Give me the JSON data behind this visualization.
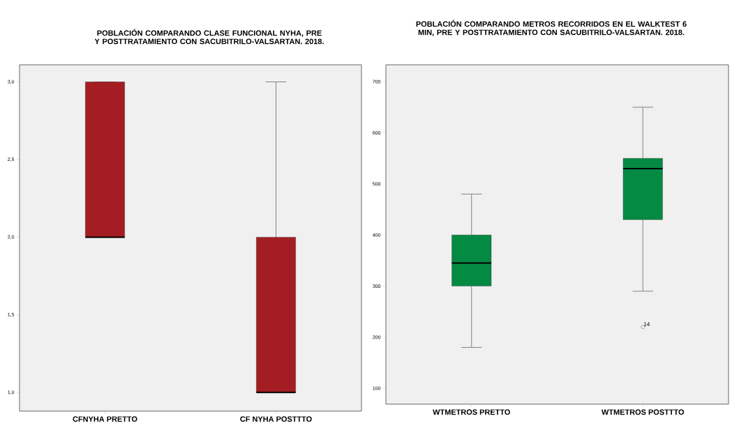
{
  "chart_data": [
    {
      "type": "box",
      "title": "POBLACIÓN COMPARANDO CLASE FUNCIONAL NYHA, PRE Y POSTTRATAMIENTO CON SACUBITRILO-VALSARTAN. 2018.",
      "categories": [
        "CFNYHA PRETTO",
        "CF NYHA POSTTTO"
      ],
      "ylim": [
        0.88,
        3.11
      ],
      "yticks": [
        {
          "value": 1.0,
          "label": "1,0"
        },
        {
          "value": 1.5,
          "label": "1,5"
        },
        {
          "value": 2.0,
          "label": "2,0"
        },
        {
          "value": 2.5,
          "label": "2,5"
        },
        {
          "value": 3.0,
          "label": "3,0"
        }
      ],
      "series": [
        {
          "color": "#a31d22",
          "boxes": [
            {
              "low": 2,
              "q1": 2,
              "median": 2,
              "q3": 3,
              "high": 3
            },
            {
              "low": 1,
              "q1": 1,
              "median": 1,
              "q3": 2,
              "high": 3
            }
          ]
        }
      ]
    },
    {
      "type": "box",
      "title": "POBLACIÓN COMPARANDO METROS RECORRIDOS EN EL WALKTEST 6 MIN, PRE Y POSTTRATAMIENTO CON SACUBITRILO-VALSARTAN. 2018.",
      "categories": [
        "WTMETROS PRETTO",
        "WTMETROS POSTTTO"
      ],
      "ylim": [
        69,
        733
      ],
      "yticks": [
        100,
        200,
        300,
        400,
        500,
        600,
        700
      ],
      "series": [
        {
          "color": "#048a43",
          "boxes": [
            {
              "low": 180,
              "q1": 300,
              "median": 345,
              "q3": 400,
              "high": 480
            },
            {
              "low": 290,
              "q1": 430,
              "median": 530,
              "q3": 550,
              "high": 650,
              "outliers": [
                220
              ]
            }
          ]
        }
      ],
      "annotations": [
        "14"
      ]
    }
  ]
}
